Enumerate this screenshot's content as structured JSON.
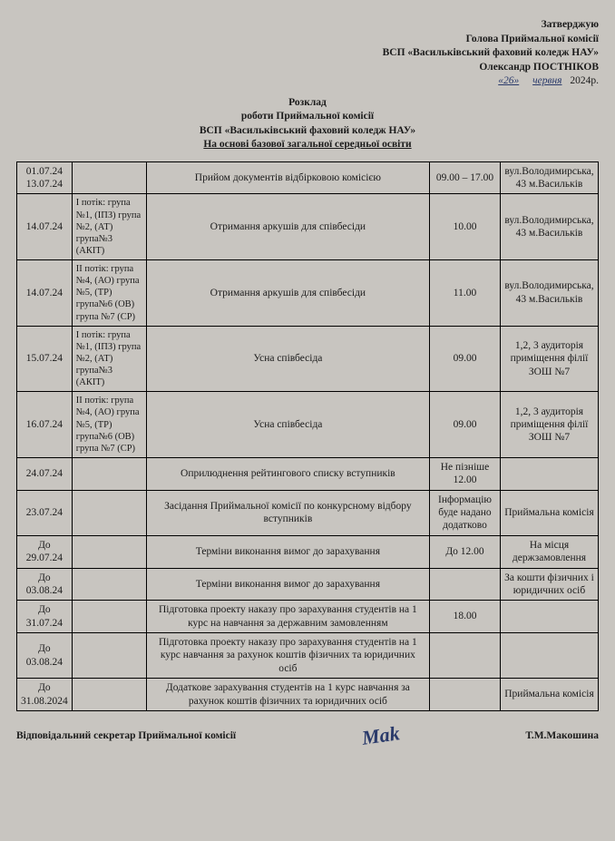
{
  "approval": {
    "line1": "Затверджую",
    "line2": "Голова Приймальної комісії",
    "line3": "ВСП «Васильківський фаховий коледж НАУ»",
    "line4": "Олександр ПОСТНІКОВ",
    "date_day": "«26»",
    "date_month": "червня",
    "date_year": "2024р."
  },
  "header": {
    "line1": "Розклад",
    "line2": "роботи Приймальної комісії",
    "line3": "ВСП «Васильківський фаховий коледж НАУ»",
    "line4": "На основі  базової загальної середньої освіти"
  },
  "rows": [
    {
      "date": "01.07.24 13.07.24",
      "groups": "",
      "event": "Прийом документів відбірковою комісією",
      "time": "09.00 – 17.00",
      "place": "вул.Володимирська, 43 м.Васильків"
    },
    {
      "date": "14.07.24",
      "groups": "І потік: група №1, (ІПЗ) група №2, (АТ) група№3 (АКІТ)",
      "event": "Отримання аркушів для співбесіди",
      "time": "10.00",
      "place": "вул.Володимирська, 43 м.Васильків"
    },
    {
      "date": "14.07.24",
      "groups": "ІІ потік: група №4, (АО) група №5, (ТР) група№6 (ОВ) група №7 (СР)",
      "event": "Отримання аркушів для співбесіди",
      "time": "11.00",
      "place": "вул.Володимирська, 43 м.Васильків"
    },
    {
      "date": "15.07.24",
      "groups": "І потік: група №1, (ІПЗ) група №2, (АТ) група№3 (АКІТ)",
      "event": "Усна співбесіда",
      "time": "09.00",
      "place": "1,2, 3 аудиторія приміщення філії ЗОШ №7"
    },
    {
      "date": "16.07.24",
      "groups": "ІІ потік: група №4, (АО) група №5, (ТР) група№6 (ОВ) група №7 (СР)",
      "event": "Усна співбесіда",
      "time": "09.00",
      "place": "1,2, 3 аудиторія приміщення філії ЗОШ №7"
    },
    {
      "date": "24.07.24",
      "groups": "",
      "event": "Оприлюднення рейтингового списку вступників",
      "time": "Не пізніше 12.00",
      "place": ""
    },
    {
      "date": "23.07.24",
      "groups": "",
      "event": "Засідання Приймальної комісії по конкурсному відбору вступників",
      "time": "Інформацію буде надано додатково",
      "place": "Приймальна комісія"
    },
    {
      "date": "До 29.07.24",
      "groups": "",
      "event": "Терміни виконання вимог до зарахування",
      "time": "До 12.00",
      "place": "На місця держзамовлення"
    },
    {
      "date": "До 03.08.24",
      "groups": "",
      "event": "Терміни виконання вимог до зарахування",
      "time": "",
      "place": "За кошти фізичних і юридичних осіб"
    },
    {
      "date": "До 31.07.24",
      "groups": "",
      "event": "Підготовка проекту наказу про зарахування студентів на 1 курс на навчання за державним замовленням",
      "time": "18.00",
      "place": ""
    },
    {
      "date": "До 03.08.24",
      "groups": "",
      "event": "Підготовка проекту наказу про зарахування студентів на 1 курс навчання за рахунок коштів фізичних та юридичних осіб",
      "time": "",
      "place": ""
    },
    {
      "date": "До 31.08.2024",
      "groups": "",
      "event": "Додаткове зарахування студентів на 1 курс навчання за рахунок коштів фізичних та юридичних осіб",
      "time": "",
      "place": "Приймальна комісія"
    }
  ],
  "footer": {
    "left": "Відповідальний секретар Приймальної комісії",
    "right": "Т.М.Макошина"
  }
}
